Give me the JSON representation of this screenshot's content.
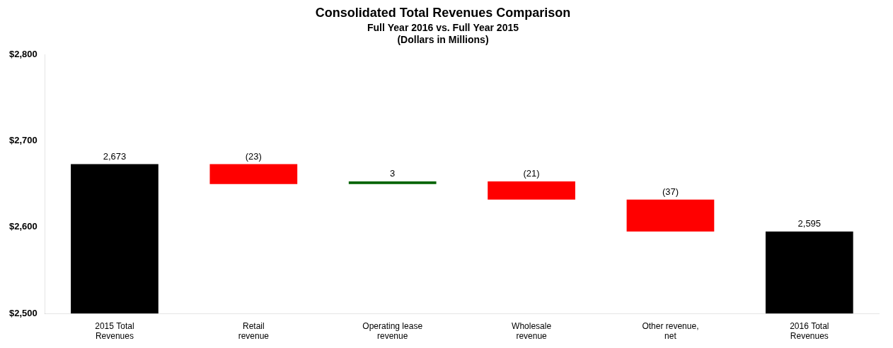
{
  "chart_data": {
    "type": "bar",
    "title": "Consolidated Total Revenues Comparison",
    "subtitle": [
      "Full Year 2016 vs. Full Year 2015",
      "(Dollars in Millions)"
    ],
    "categories": [
      "2015 Total\nRevenues",
      "Retail\nrevenue",
      "Operating lease\nrevenue",
      "Wholesale\nrevenue",
      "Other revenue,\nnet",
      "2016 Total\nRevenues"
    ],
    "values": [
      [
        2500,
        2673
      ],
      [
        2650,
        2673
      ],
      [
        2650,
        2653
      ],
      [
        2632,
        2653
      ],
      [
        2595,
        2632
      ],
      [
        2500,
        2595
      ]
    ],
    "value_labels": [
      "2,673",
      "(23)",
      "3",
      "(21)",
      "(37)",
      "2,595"
    ],
    "data_labels": true,
    "colors": [
      "#000000",
      "#ff0000",
      "#006400",
      "#ff0000",
      "#ff0000",
      "#000000"
    ],
    "ylim": [
      2500,
      2800
    ],
    "yticks": [
      {
        "value": 2500,
        "label": "$2,500"
      },
      {
        "value": 2600,
        "label": "$2,600"
      },
      {
        "value": 2700,
        "label": "$2,700"
      },
      {
        "value": 2800,
        "label": "$2,800"
      }
    ],
    "grid": false
  }
}
